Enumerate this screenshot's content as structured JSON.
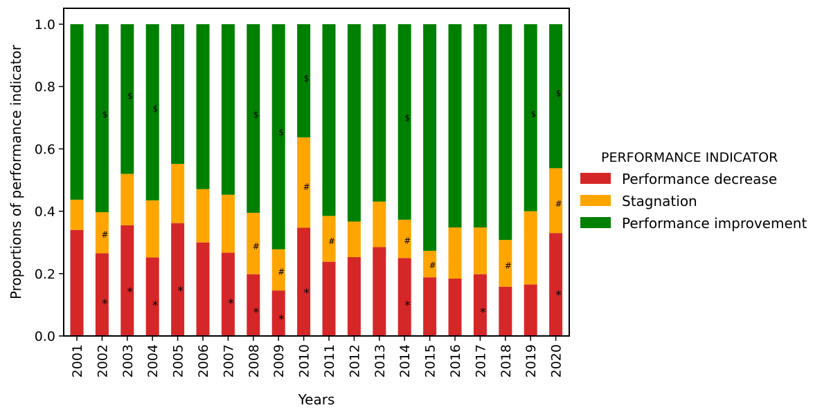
{
  "chart_data": {
    "type": "bar",
    "stacked": true,
    "normalized": true,
    "title": "",
    "xlabel": "Years",
    "ylabel": "Proportions of performance indicator",
    "ylim": [
      0,
      1.0
    ],
    "yticks": [
      "0.0",
      "0.2",
      "0.4",
      "0.6",
      "0.8",
      "1.0"
    ],
    "categories": [
      "2001",
      "2002",
      "2003",
      "2004",
      "2005",
      "2006",
      "2007",
      "2008",
      "2009",
      "2010",
      "2011",
      "2012",
      "2013",
      "2014",
      "2015",
      "2016",
      "2017",
      "2018",
      "2019",
      "2020"
    ],
    "series": [
      {
        "name": "Performance decrease",
        "color": "#d62728",
        "values": [
          0.34,
          0.265,
          0.355,
          0.252,
          0.362,
          0.3,
          0.267,
          0.198,
          0.146,
          0.347,
          0.238,
          0.253,
          0.285,
          0.25,
          0.188,
          0.184,
          0.198,
          0.158,
          0.165,
          0.33
        ]
      },
      {
        "name": "Stagnation",
        "color": "#ffa500",
        "values": [
          0.097,
          0.132,
          0.165,
          0.183,
          0.19,
          0.171,
          0.186,
          0.197,
          0.132,
          0.29,
          0.147,
          0.114,
          0.146,
          0.123,
          0.085,
          0.164,
          0.15,
          0.15,
          0.235,
          0.208
        ]
      },
      {
        "name": "Performance improvement",
        "color": "#008000",
        "values": [
          0.563,
          0.603,
          0.48,
          0.565,
          0.448,
          0.529,
          0.547,
          0.605,
          0.722,
          0.363,
          0.615,
          0.633,
          0.569,
          0.627,
          0.727,
          0.652,
          0.652,
          0.692,
          0.6,
          0.462
        ]
      }
    ],
    "significance_markers": {
      "Performance decrease": {
        "symbol": "*",
        "years": [
          "2002",
          "2003",
          "2004",
          "2005",
          "2007",
          "2008",
          "2009",
          "2010",
          "2014",
          "2017",
          "2020"
        ]
      },
      "Stagnation": {
        "symbol": "#",
        "years": [
          "2002",
          "2008",
          "2009",
          "2010",
          "2011",
          "2014",
          "2015",
          "2018",
          "2020"
        ]
      },
      "Performance improvement": {
        "symbol": "$",
        "years": [
          "2002",
          "2003",
          "2004",
          "2008",
          "2009",
          "2010",
          "2014",
          "2019",
          "2020"
        ]
      }
    },
    "legend": {
      "title": "PERFORMANCE INDICATOR",
      "placement": "right"
    }
  }
}
